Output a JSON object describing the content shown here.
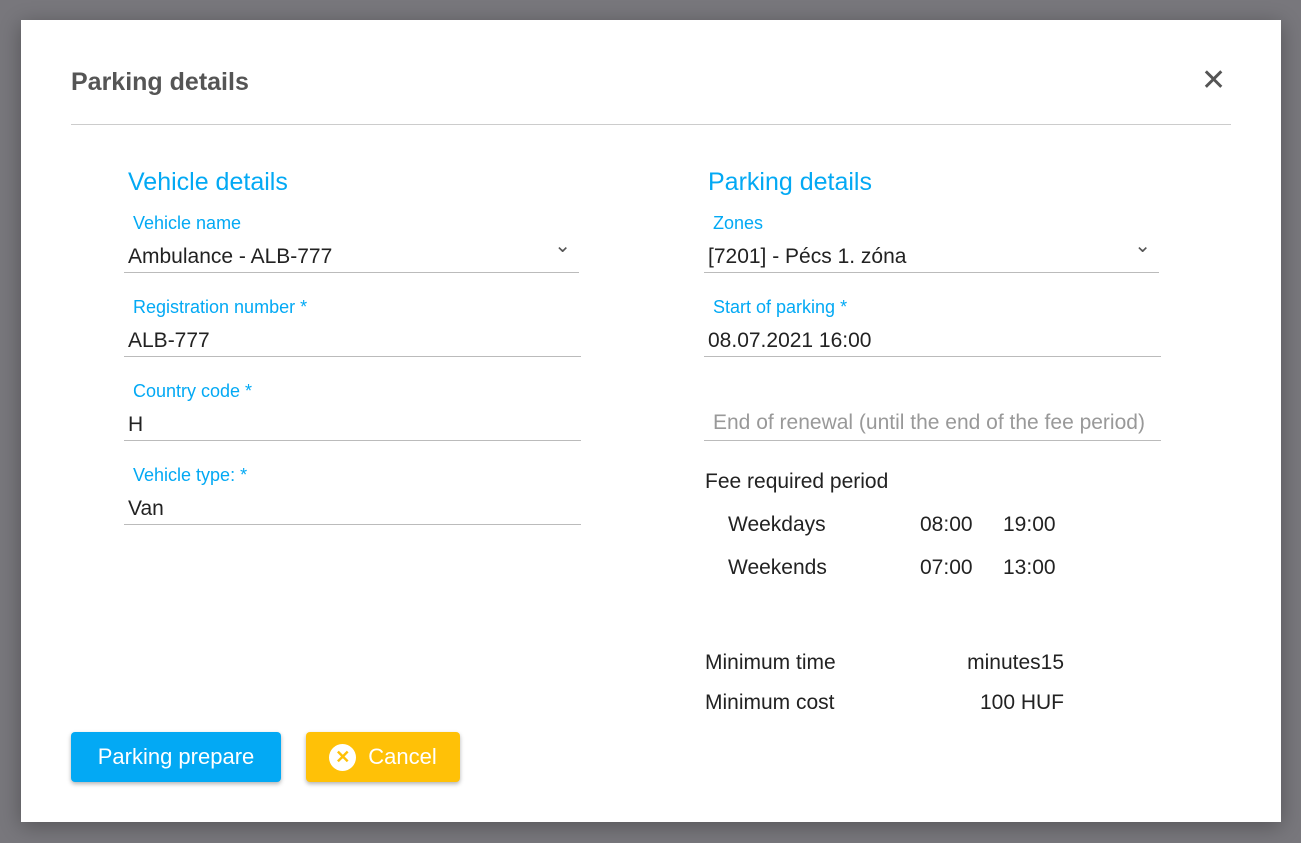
{
  "dialog": {
    "title": "Parking details",
    "close_icon": "close-icon"
  },
  "vehicle": {
    "heading": "Vehicle details",
    "name_label": "Vehicle name",
    "name_value": "Ambulance - ALB-777",
    "reg_label": "Registration number  *",
    "reg_value": "ALB-777",
    "country_label": "Country code  *",
    "country_value": "H",
    "type_label": "Vehicle type:  *",
    "type_value": "Van"
  },
  "parking": {
    "heading": "Parking details",
    "zones_label": "Zones",
    "zones_value": "[7201] - Pécs 1. zóna",
    "start_label": "Start of parking  *",
    "start_value": "08.07.2021 16:00",
    "end_placeholder": "End of renewal (until the end of the fee period)",
    "fee_title": "Fee required period",
    "fee_rows": [
      {
        "day": "Weekdays",
        "from": "08:00",
        "to": "19:00"
      },
      {
        "day": "Weekends",
        "from": "07:00",
        "to": "13:00"
      }
    ],
    "min_time_label": "Minimum time",
    "min_time_value": "minutes15",
    "min_cost_label": "Minimum cost",
    "min_cost_value": "100 HUF"
  },
  "buttons": {
    "prepare": "Parking prepare",
    "cancel": "Cancel"
  },
  "colors": {
    "accent": "#03a9f4",
    "cancel": "#ffc107"
  }
}
